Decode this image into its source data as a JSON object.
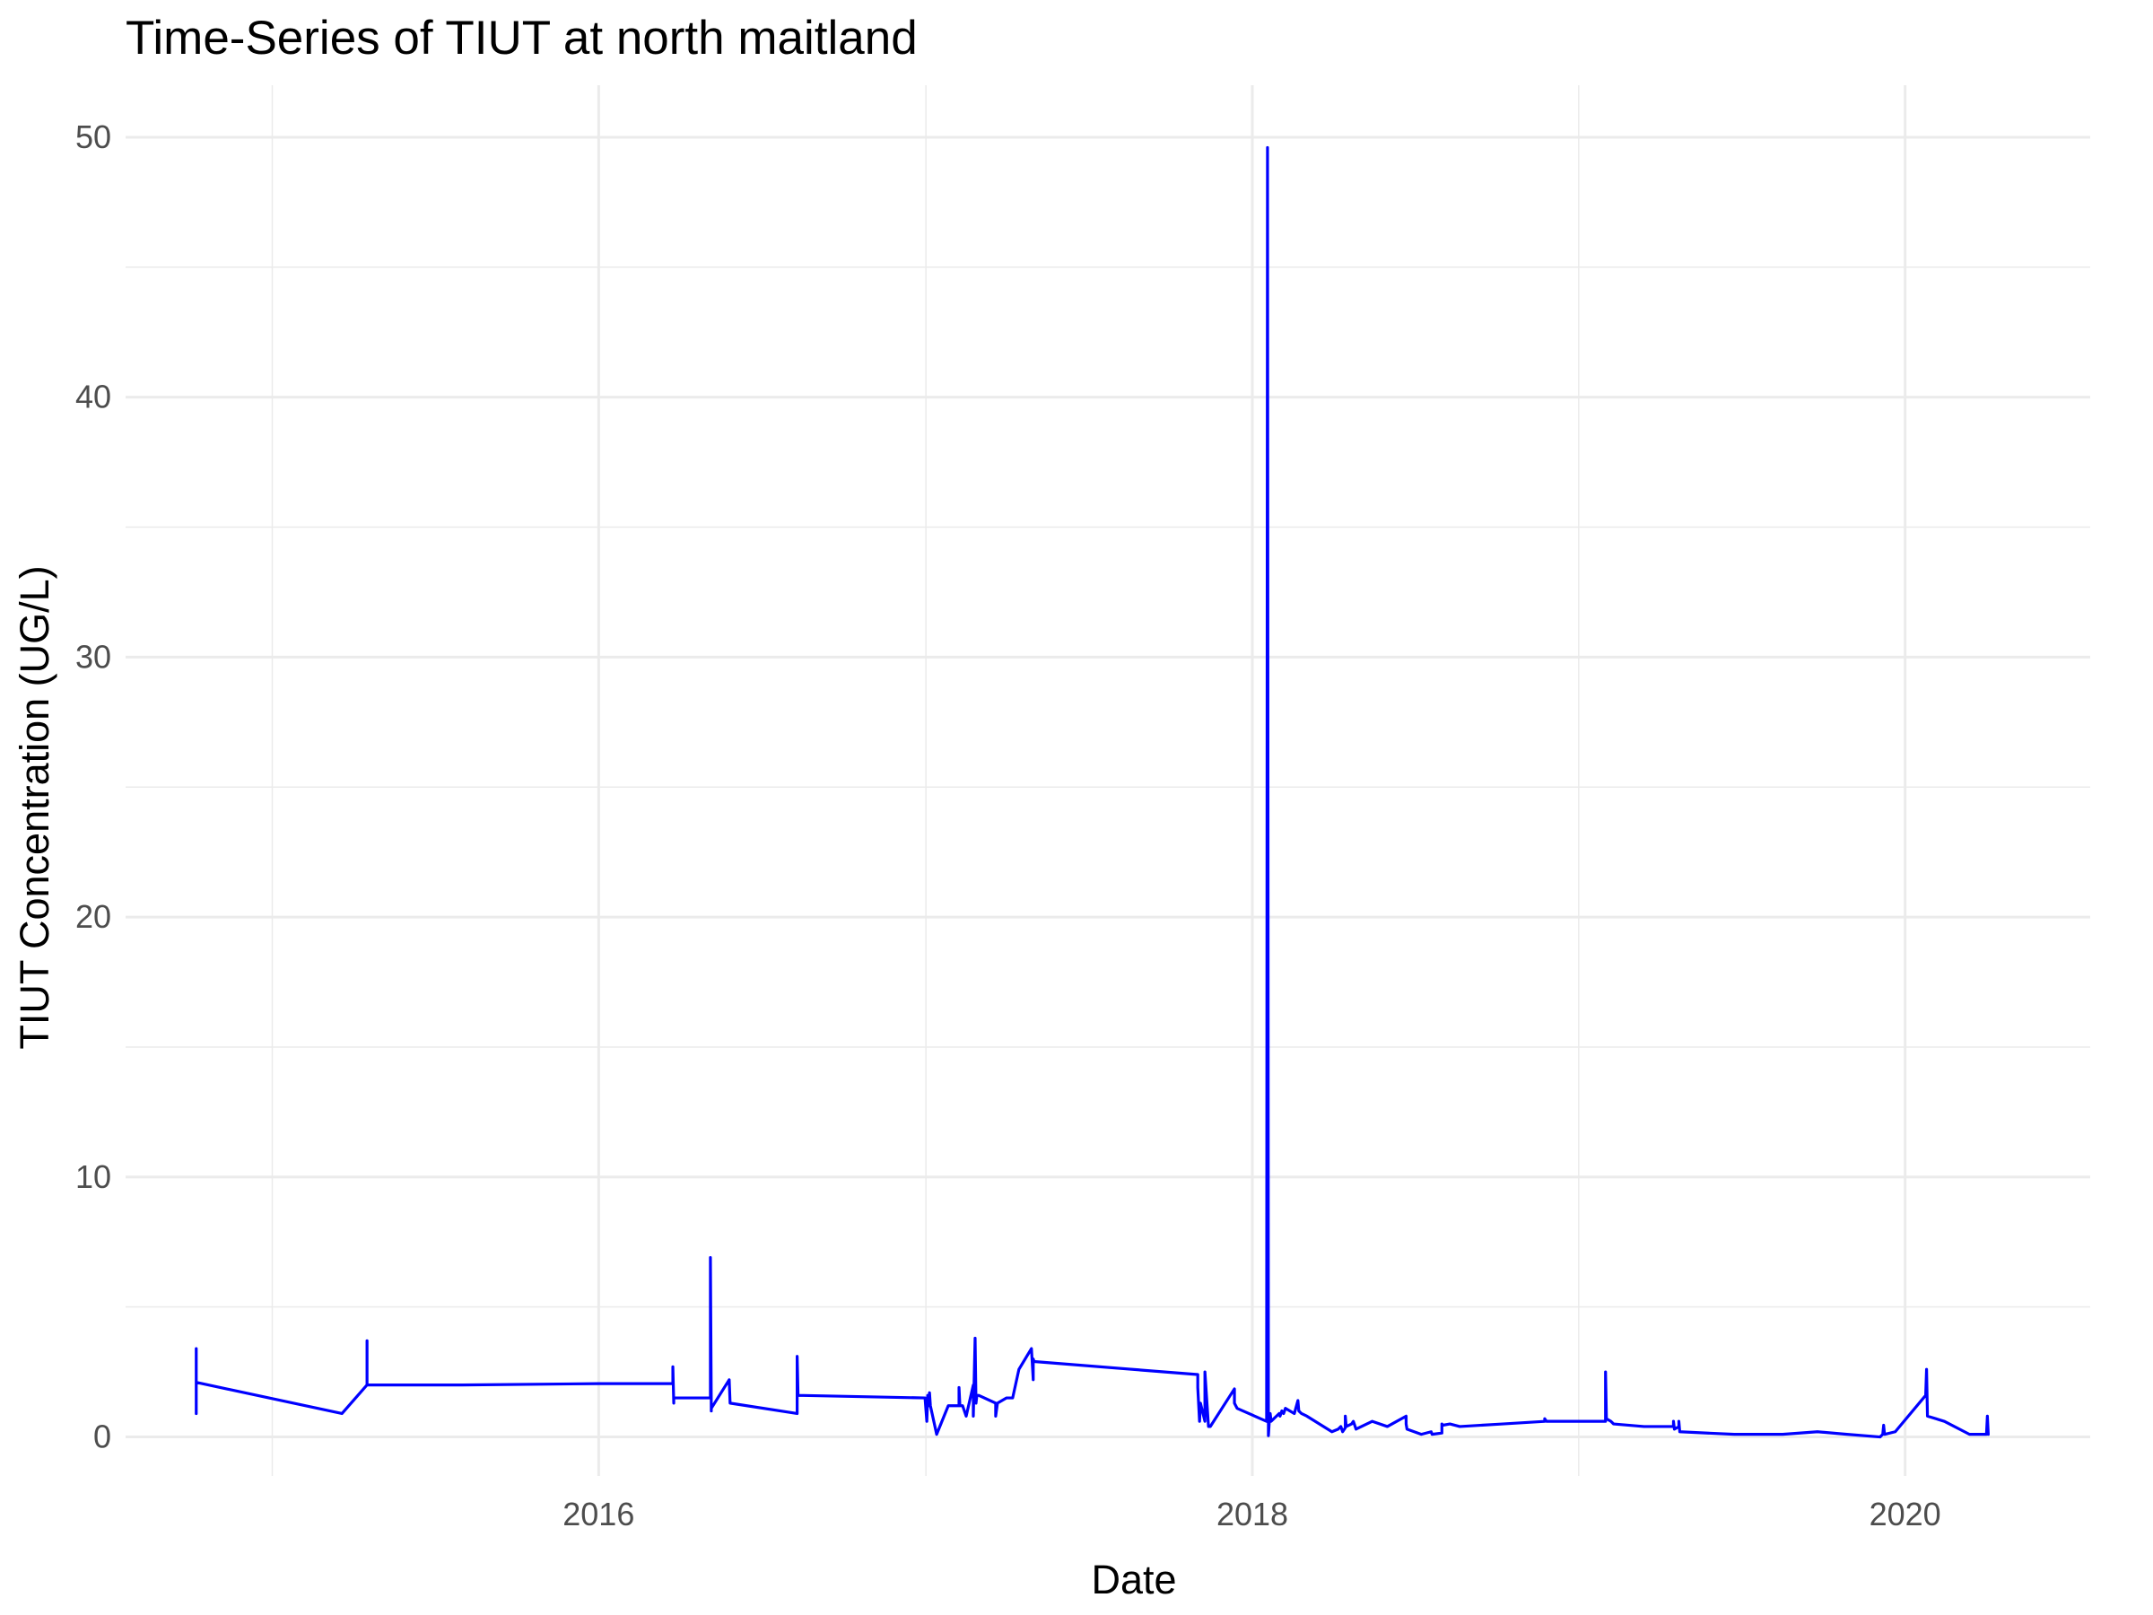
{
  "chart_data": {
    "type": "line",
    "title": "Time-Series of TIUT at north maitland",
    "xlabel": "Date",
    "ylabel": "TIUT Concentration (UG/L)",
    "x_tick_labels": [
      "2016",
      "2018",
      "2020"
    ],
    "y_tick_labels": [
      "0",
      "10",
      "20",
      "30",
      "40",
      "50"
    ],
    "x_major_ticks": [
      "2016-01-01",
      "2018-01-01",
      "2020-01-01"
    ],
    "x_minor_ticks": [
      "2015-01-01",
      "2017-01-01",
      "2019-01-01"
    ],
    "y_major_ticks": [
      0,
      10,
      20,
      30,
      40,
      50
    ],
    "y_minor_ticks": [
      5,
      15,
      25,
      35,
      45
    ],
    "xlim": [
      "2014-07-21",
      "2020-07-26"
    ],
    "ylim": [
      -1.5,
      52
    ],
    "grid": true,
    "legend": "none",
    "color": "#0000ff",
    "series": [
      {
        "x": [
          "2014-10-08",
          "2014-10-08",
          "2014-10-08",
          "2015-03-20",
          "2015-04-17",
          "2015-04-17",
          "2015-04-17",
          "2015-04-17",
          "2015-08-01",
          "2016-01-01",
          "2016-03-24",
          "2016-03-24",
          "2016-03-25",
          "2016-03-25",
          "2016-05-05",
          "2016-05-05",
          "2016-05-06",
          "2016-05-06",
          "2016-05-26",
          "2016-05-27",
          "2016-08-10",
          "2016-08-10",
          "2016-08-11",
          "2016-12-31",
          "2017-01-02",
          "2017-01-03",
          "2017-01-04",
          "2017-01-05",
          "2017-01-06",
          "2017-01-13",
          "2017-01-26",
          "2017-02-07",
          "2017-02-07",
          "2017-02-08",
          "2017-02-11",
          "2017-02-15",
          "2017-02-23",
          "2017-02-23",
          "2017-02-25",
          "2017-02-26",
          "2017-02-27",
          "2017-02-28",
          "2017-03-01",
          "2017-03-20",
          "2017-03-20",
          "2017-03-22",
          "2017-04-01",
          "2017-04-08",
          "2017-04-15",
          "2017-04-29",
          "2017-05-01",
          "2017-05-01",
          "2017-05-02",
          "2017-11-01",
          "2017-11-01",
          "2017-11-03",
          "2017-11-04",
          "2017-11-09",
          "2017-11-09",
          "2017-11-13",
          "2017-11-15",
          "2017-12-12",
          "2017-12-12",
          "2017-12-15",
          "2018-01-17",
          "2018-01-18",
          "2018-01-19",
          "2018-01-20",
          "2018-01-21",
          "2018-01-22",
          "2018-01-28",
          "2018-01-31",
          "2018-02-01",
          "2018-02-03",
          "2018-02-05",
          "2018-02-07",
          "2018-02-17",
          "2018-02-21",
          "2018-02-22",
          "2018-02-25",
          "2018-03-03",
          "2018-03-31",
          "2018-04-07",
          "2018-04-10",
          "2018-04-12",
          "2018-04-15",
          "2018-04-15",
          "2018-04-16",
          "2018-04-22",
          "2018-04-24",
          "2018-04-27",
          "2018-05-03",
          "2018-05-15",
          "2018-06-01",
          "2018-06-22",
          "2018-06-22",
          "2018-06-23",
          "2018-07-09",
          "2018-07-20",
          "2018-07-21",
          "2018-08-01",
          "2018-08-01",
          "2018-08-02",
          "2018-08-10",
          "2018-08-21",
          "2018-10-08",
          "2018-11-24",
          "2018-11-24",
          "2018-11-26",
          "2018-12-08",
          "2019-01-31",
          "2019-01-31",
          "2019-02-01",
          "2019-02-06",
          "2019-02-09",
          "2019-03-15",
          "2019-04-17",
          "2019-04-17",
          "2019-04-18",
          "2019-04-23",
          "2019-04-23",
          "2019-04-24",
          "2019-06-24",
          "2019-08-17",
          "2019-09-25",
          "2019-10-28",
          "2019-12-04",
          "2019-12-07",
          "2019-12-08",
          "2019-12-09",
          "2019-12-21",
          "2020-01-24",
          "2020-01-25",
          "2020-01-26",
          "2020-02-14",
          "2020-03-13",
          "2020-04-01",
          "2020-04-02",
          "2020-04-03"
        ],
        "y": [
          3.4,
          0.9,
          2.1,
          0.9,
          2.0,
          3.7,
          2.2,
          2.0,
          2.0,
          2.05,
          2.05,
          2.7,
          1.3,
          1.5,
          1.5,
          6.9,
          1.0,
          1.1,
          2.2,
          1.3,
          0.9,
          3.1,
          1.6,
          1.5,
          0.6,
          1.6,
          1.2,
          1.7,
          1.2,
          0.1,
          1.2,
          1.2,
          1.9,
          1.2,
          1.2,
          0.8,
          2.0,
          0.8,
          3.8,
          1.3,
          1.6,
          1.6,
          1.6,
          1.3,
          0.8,
          1.3,
          1.5,
          1.5,
          2.6,
          3.4,
          2.2,
          3.0,
          2.9,
          2.4,
          1.9,
          0.6,
          1.3,
          0.6,
          2.5,
          0.4,
          0.4,
          1.85,
          1.3,
          1.1,
          0.6,
          49.6,
          0.05,
          0.6,
          0.9,
          0.6,
          0.8,
          0.9,
          0.8,
          1.0,
          0.9,
          1.1,
          0.9,
          1.4,
          1.0,
          0.9,
          0.8,
          0.2,
          0.3,
          0.4,
          0.2,
          0.35,
          0.8,
          0.4,
          0.5,
          0.6,
          0.3,
          0.4,
          0.6,
          0.4,
          0.8,
          0.5,
          0.3,
          0.1,
          0.2,
          0.1,
          0.15,
          0.5,
          0.45,
          0.5,
          0.4,
          0.5,
          0.6,
          0.7,
          0.6,
          0.6,
          0.6,
          2.5,
          0.7,
          0.6,
          0.5,
          0.4,
          0.4,
          0.6,
          0.3,
          0.4,
          0.6,
          0.2,
          0.1,
          0.1,
          0.2,
          0.1,
          0.0,
          0.1,
          0.45,
          0.1,
          0.2,
          1.6,
          2.6,
          0.8,
          0.6,
          0.1,
          0.1,
          0.8,
          0.1
        ]
      }
    ]
  }
}
